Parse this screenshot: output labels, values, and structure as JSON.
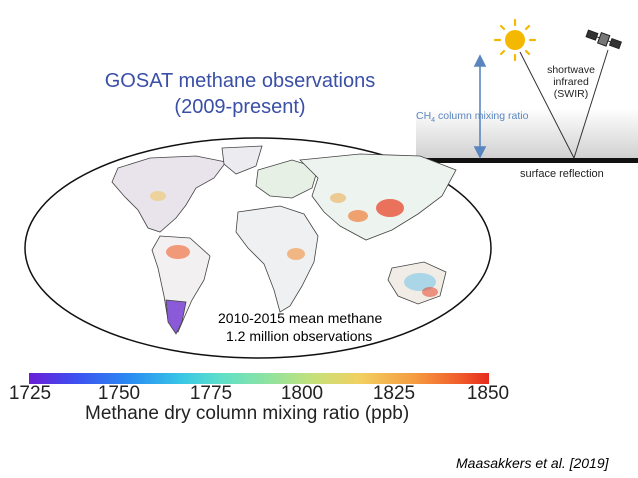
{
  "figure": {
    "title_line1": "GOSAT methane observations",
    "title_line2": "(2009-present)",
    "annotation_line1": "2010-2015 mean methane",
    "annotation_line2": "1.2 million observations",
    "citation": "Maasakkers et al. [2019]"
  },
  "inset": {
    "ch4_prefix": "CH",
    "ch4_subscript": "4",
    "ch4_suffix": " column mixing ratio",
    "sensor_line1": "shortwave",
    "sensor_line2": "infrared",
    "sensor_line3": "(SWIR)",
    "surface_label": "surface reflection",
    "icons": [
      "sun-icon",
      "satellite-icon"
    ]
  },
  "colorbar": {
    "ticks": [
      "1725",
      "1750",
      "1775",
      "1800",
      "1825",
      "1850"
    ],
    "label": "Methane dry column mixing ratio (ppb)",
    "min": 1725,
    "max": 1850,
    "colors": [
      "#6a1fd6",
      "#2a8cf2",
      "#5fe0c8",
      "#c6e07a",
      "#f59a40",
      "#e52b1c"
    ]
  }
}
